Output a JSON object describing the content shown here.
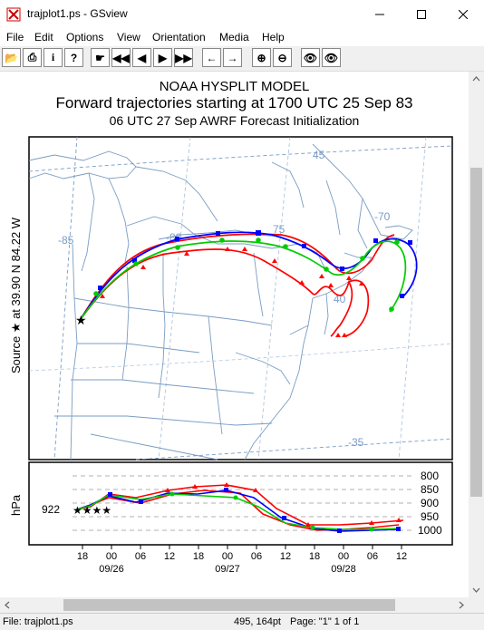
{
  "window": {
    "title": "trajplot1.ps - GSview"
  },
  "menu": [
    "File",
    "Edit",
    "Options",
    "View",
    "Orientation",
    "Media",
    "Help"
  ],
  "plot": {
    "title1": "NOAA HYSPLIT MODEL",
    "title2": "Forward trajectories starting at 1700 UTC 25 Sep 83",
    "title3": "06 UTC 27 Sep    AWRF  Forecast Initialization",
    "source_label": "Source ★    at       39.90 N     84.22 W",
    "map_labels": [
      "45",
      "-85",
      "-80",
      "75",
      "-70",
      "40",
      "-35"
    ],
    "hpa_label": "hPa",
    "start_pressure": "922",
    "pressure_ticks": [
      "800",
      "850",
      "900",
      "950",
      "1000"
    ],
    "time_ticks": [
      "18",
      "00",
      "06",
      "12",
      "18",
      "00",
      "06",
      "12",
      "18",
      "00",
      "06",
      "12"
    ],
    "date_labels": [
      "09/26",
      "09/27",
      "09/28"
    ]
  },
  "status": {
    "file": "File: trajplot1.ps",
    "coords": "495, 164pt",
    "page": "Page: \"1\"  1 of 1"
  },
  "colors": {
    "traj_red": "#ff0000",
    "traj_blue": "#0000ff",
    "traj_green": "#00cc00",
    "map_lines": "#7a9cc4"
  }
}
